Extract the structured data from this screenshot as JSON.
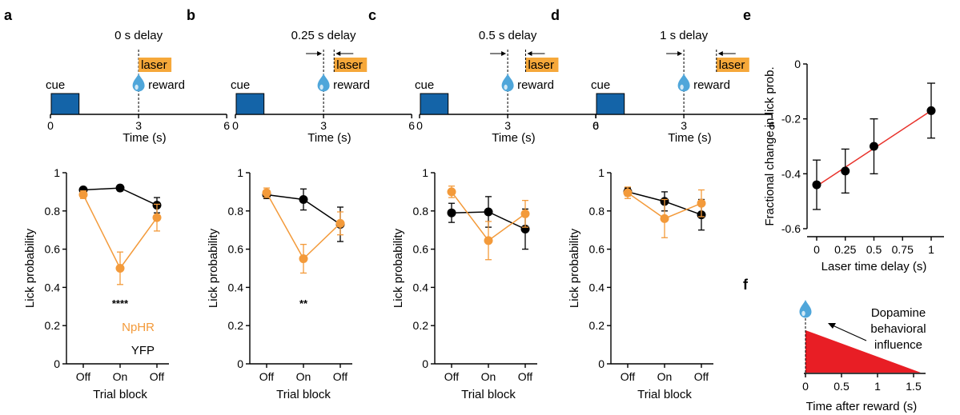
{
  "panel_labels": [
    "a",
    "b",
    "c",
    "d",
    "e",
    "f"
  ],
  "colors": {
    "npHR": "#F39A3A",
    "yfp": "#000000",
    "cue": "#1464A8",
    "laser": "#F6A83A",
    "fit_line": "#E8312A",
    "triangle": "#E81E25",
    "drop": "#4FA6DA"
  },
  "legend": {
    "npHR": "NpHR",
    "yfp": "YFP"
  },
  "schematic": {
    "cue_label": "cue",
    "laser_label": "laser",
    "reward_label": "reward",
    "xlabel": "Time (s)",
    "xticks": [
      "0",
      "3",
      "6"
    ]
  },
  "chart_data": [
    {
      "type": "line",
      "title": "0 s delay",
      "laser_delay_s": 0,
      "categories": [
        "Off",
        "On",
        "Off"
      ],
      "xlabel": "Trial block",
      "ylabel": "Lick probability",
      "ylim": [
        0,
        1
      ],
      "yticks": [
        "0",
        "0.2",
        "0.4",
        "0.6",
        "0.8",
        "1"
      ],
      "significance": "****",
      "series": [
        {
          "name": "YFP",
          "values": [
            0.91,
            0.92,
            0.83
          ],
          "errors": [
            0.01,
            0.015,
            0.04
          ]
        },
        {
          "name": "NpHR",
          "values": [
            0.885,
            0.5,
            0.765
          ],
          "errors": [
            0.02,
            0.085,
            0.07
          ]
        }
      ]
    },
    {
      "type": "line",
      "title": "0.25 s delay",
      "laser_delay_s": 0.25,
      "categories": [
        "Off",
        "On",
        "Off"
      ],
      "xlabel": "Trial block",
      "ylabel": "Lick probability",
      "ylim": [
        0,
        1
      ],
      "yticks": [
        "0",
        "0.2",
        "0.4",
        "0.6",
        "0.8",
        "1"
      ],
      "significance": "**",
      "series": [
        {
          "name": "YFP",
          "values": [
            0.885,
            0.86,
            0.73
          ],
          "errors": [
            0.02,
            0.055,
            0.09
          ]
        },
        {
          "name": "NpHR",
          "values": [
            0.895,
            0.55,
            0.735
          ],
          "errors": [
            0.025,
            0.075,
            0.06
          ]
        }
      ]
    },
    {
      "type": "line",
      "title": "0.5 s delay",
      "laser_delay_s": 0.5,
      "categories": [
        "Off",
        "On",
        "Off"
      ],
      "xlabel": "Trial block",
      "ylabel": "Lick probability",
      "ylim": [
        0,
        1
      ],
      "yticks": [
        "0",
        "0.2",
        "0.4",
        "0.6",
        "0.8",
        "1"
      ],
      "significance": "",
      "series": [
        {
          "name": "YFP",
          "values": [
            0.79,
            0.795,
            0.705
          ],
          "errors": [
            0.05,
            0.08,
            0.105
          ]
        },
        {
          "name": "NpHR",
          "values": [
            0.9,
            0.645,
            0.785
          ],
          "errors": [
            0.03,
            0.1,
            0.07
          ]
        }
      ]
    },
    {
      "type": "line",
      "title": "1 s delay",
      "laser_delay_s": 1,
      "categories": [
        "Off",
        "On",
        "Off"
      ],
      "xlabel": "Trial block",
      "ylabel": "Lick probability",
      "ylim": [
        0,
        1
      ],
      "yticks": [
        "0",
        "0.2",
        "0.4",
        "0.6",
        "0.8",
        "1"
      ],
      "significance": "",
      "series": [
        {
          "name": "YFP",
          "values": [
            0.9,
            0.85,
            0.78
          ],
          "errors": [
            0.02,
            0.05,
            0.08
          ]
        },
        {
          "name": "NpHR",
          "values": [
            0.895,
            0.76,
            0.84
          ],
          "errors": [
            0.03,
            0.1,
            0.07
          ]
        }
      ]
    },
    {
      "type": "scatter",
      "x": [
        0,
        0.25,
        0.5,
        1
      ],
      "y": [
        -0.44,
        -0.39,
        -0.3,
        -0.17
      ],
      "errors": [
        0.09,
        0.08,
        0.1,
        0.1
      ],
      "fit_line": [
        [
          0,
          -0.445
        ],
        [
          1,
          -0.17
        ]
      ],
      "xlabel": "Laser time delay (s)",
      "ylabel": "Fractional change in lick prob.",
      "xlim": [
        0,
        1
      ],
      "ylim": [
        -0.6,
        0
      ],
      "xticks": [
        "0",
        "0.25",
        "0.5",
        "0.75",
        "1"
      ],
      "yticks": [
        "0",
        "-0.2",
        "-0.4",
        "-0.6"
      ]
    },
    {
      "type": "area",
      "x": [
        0,
        1.6
      ],
      "y": [
        1,
        0
      ],
      "xlabel": "Time after reward (s)",
      "xticks": [
        "0",
        "0.5",
        "1",
        "1.5"
      ],
      "annotation": "Dopamine behavioral influence",
      "annotation_lines": [
        "Dopamine",
        "behavioral",
        "influence"
      ]
    }
  ]
}
